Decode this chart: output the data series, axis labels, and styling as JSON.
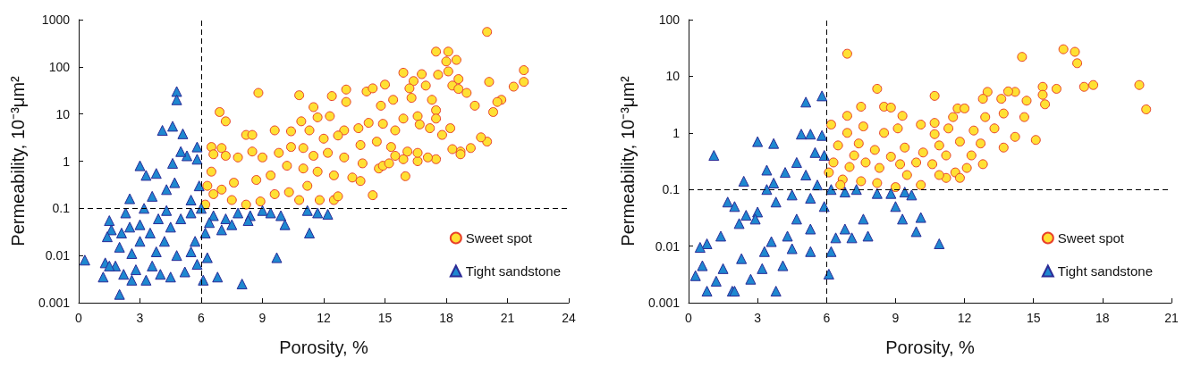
{
  "chart_data": [
    {
      "type": "scatter",
      "xlabel": "Porosity, %",
      "ylabel": "Permeability, 10⁻³μm²",
      "log": "y",
      "legend": "bottom right",
      "xlim": [
        0,
        24
      ],
      "xticks": [
        0,
        3,
        6,
        9,
        12,
        15,
        18,
        21,
        24
      ],
      "ylim": [
        0.001,
        1000
      ],
      "yticks": [
        0.001,
        0.01,
        0.1,
        1,
        10,
        100,
        1000
      ],
      "ref_lines": [
        {
          "axis": "x",
          "value": 6,
          "color": "#000000",
          "line_style": "dashed"
        },
        {
          "axis": "y",
          "value": 0.1,
          "color": "#000000",
          "line_style": "dashed"
        }
      ],
      "series": [
        {
          "name": "Sweet spot",
          "color": "#ffe033",
          "marker": "circle",
          "x": [
            20,
            17.5,
            18.1,
            18,
            18.5,
            18.1,
            21.8,
            21.8,
            20.1,
            21.3,
            20.7,
            20.5,
            20.3,
            20,
            19.7,
            19.2,
            18.7,
            18.7,
            18.3,
            18.2,
            17.5,
            17.1,
            16.6,
            16,
            15.9,
            14.4,
            14.7,
            11.8,
            12.5,
            12.7,
            8.8,
            10.8,
            6.9,
            7.2,
            12.4,
            13.1,
            13.1,
            14.1,
            14.4,
            15,
            15.9,
            16.8,
            17.6,
            16.4,
            16.2,
            17,
            18.3,
            18.6,
            18.6,
            19,
            19.4,
            11.5,
            11.7,
            12.3,
            10.9,
            14.8,
            15.4,
            16.3,
            17.3,
            17.5,
            17.5,
            17.8,
            17.2,
            15.9,
            16.6,
            16.7,
            15.5,
            14.9,
            14.2,
            13.7,
            13,
            12.7,
            12,
            11.3,
            10.4,
            9.6,
            8.2,
            8.5,
            6.5,
            7,
            7.2,
            7.8,
            8.5,
            9,
            9.8,
            10.4,
            11,
            11.5,
            12.2,
            13,
            13.8,
            14.6,
            15.3,
            16.1,
            10.2,
            11,
            11.7,
            12.5,
            13.4,
            13.8,
            9.4,
            8.7,
            7.6,
            6.3,
            6.6,
            7,
            7.5,
            8.2,
            8.9,
            9.6,
            10.3,
            11.2,
            6.2,
            6.5,
            6.6,
            10.8,
            13.9,
            14.9,
            15.5,
            16.6,
            15.2
          ],
          "values": [
            550,
            210,
            210,
            130,
            140,
            80,
            85,
            48,
            48,
            38,
            20,
            18,
            11,
            2.6,
            3.2,
            1.9,
            1.6,
            1.4,
            1.8,
            5,
            1.1,
            1.2,
            1,
            0.48,
            1.1,
            0.19,
            0.7,
            0.15,
            0.15,
            0.18,
            28,
            25,
            11,
            7,
            24,
            33,
            18,
            30,
            35,
            42,
            75,
            70,
            68,
            50,
            35,
            40,
            40,
            34,
            55,
            28,
            15,
            14,
            8.5,
            9,
            7,
            15,
            20,
            22,
            20,
            12,
            8,
            3.6,
            5,
            8,
            9,
            6,
            4.5,
            6.2,
            6.5,
            5,
            4.5,
            3.5,
            3,
            4.5,
            4.3,
            4.5,
            3.6,
            3.6,
            2,
            1.9,
            1.3,
            1.2,
            1.6,
            1.2,
            1.5,
            2,
            1.9,
            1.3,
            1.5,
            1.2,
            2.2,
            2.6,
            2,
            1.6,
            0.8,
            0.7,
            0.6,
            0.5,
            0.45,
            0.38,
            0.5,
            0.4,
            0.35,
            0.3,
            0.2,
            0.25,
            0.15,
            0.12,
            0.14,
            0.2,
            0.22,
            0.3,
            0.12,
            0.6,
            1.4,
            0.15,
            0.9,
            0.8,
            1.3,
            1.5,
            0.9
          ]
        },
        {
          "name": "Tight sandstone",
          "color": "#1e88d0",
          "marker": "triangle",
          "x": [
            0.3,
            1.2,
            1.3,
            1.5,
            1.6,
            1.4,
            2,
            2,
            1.8,
            2.5,
            2.3,
            2.5,
            2.8,
            3,
            3.3,
            3.8,
            3.6,
            3.2,
            3.5,
            3,
            3.3,
            4.1,
            4.6,
            4.8,
            4.8,
            5.1,
            5.3,
            5,
            5.8,
            5.8,
            4.6,
            4.7,
            4.3,
            5.9,
            5.5,
            4.3,
            3.9,
            4.5,
            5,
            5.5,
            6,
            6.6,
            7.2,
            7.8,
            8.4,
            9,
            9.4,
            9.9,
            10.1,
            11.2,
            11.7,
            12.2,
            11.3,
            9.7,
            8,
            6.8,
            6.1,
            6.3,
            5.8,
            5.2,
            4.5,
            4,
            3.6,
            2.6,
            2.2,
            1.5,
            2.6,
            3.8,
            4.8,
            5.5,
            6.2,
            7,
            5.7,
            4.2,
            3,
            2.1,
            6.4,
            7.5,
            8.3
          ],
          "values": [
            0.008,
            0.0035,
            0.007,
            0.055,
            0.035,
            0.025,
            0.0015,
            0.015,
            0.006,
            0.16,
            0.08,
            0.04,
            0.005,
            0.8,
            0.5,
            0.55,
            0.18,
            0.1,
            0.03,
            0.02,
            0.003,
            4.5,
            5.5,
            30,
            20,
            3.8,
            1.3,
            1.6,
            2,
            1.1,
            0.9,
            0.35,
            0.25,
            0.3,
            0.15,
            0.09,
            0.06,
            0.04,
            0.06,
            0.08,
            0.1,
            0.07,
            0.06,
            0.08,
            0.07,
            0.09,
            0.08,
            0.07,
            0.045,
            0.09,
            0.08,
            0.075,
            0.03,
            0.009,
            0.0025,
            0.0035,
            0.003,
            0.009,
            0.0065,
            0.0045,
            0.0035,
            0.004,
            0.006,
            0.003,
            0.004,
            0.006,
            0.011,
            0.012,
            0.01,
            0.012,
            0.03,
            0.035,
            0.02,
            0.02,
            0.045,
            0.03,
            0.05,
            0.045,
            0.055
          ]
        }
      ]
    },
    {
      "type": "scatter",
      "xlabel": "Porosity, %",
      "ylabel": "Permeability, 10⁻³μm²",
      "log": "y",
      "legend": "bottom right",
      "xlim": [
        0,
        21
      ],
      "xticks": [
        0,
        3,
        6,
        9,
        12,
        15,
        18,
        21
      ],
      "ylim": [
        0.001,
        100
      ],
      "yticks": [
        0.001,
        0.01,
        0.1,
        1,
        10,
        100
      ],
      "ref_lines": [
        {
          "axis": "x",
          "value": 6,
          "color": "#000000",
          "line_style": "dashed"
        },
        {
          "axis": "y",
          "value": 0.1,
          "color": "#000000",
          "line_style": "dashed"
        }
      ],
      "series": [
        {
          "name": "Sweet spot",
          "color": "#ffe033",
          "marker": "circle",
          "x": [
            6.9,
            14.5,
            16.3,
            16.8,
            16.9,
            19.6,
            19.9,
            17.6,
            17.2,
            16,
            15.4,
            15.4,
            15.5,
            15.1,
            14.7,
            14.6,
            14.2,
            13.9,
            13,
            13.6,
            13.7,
            12.8,
            12.9,
            11.7,
            12,
            10.7,
            8.2,
            7.5,
            8.5,
            8.8,
            6.9,
            9.3,
            10.7,
            11.5,
            10.1,
            6.2,
            6.9,
            7.6,
            8.5,
            9.1,
            10.7,
            11.3,
            12.4,
            13.3,
            14.2,
            10.9,
            11.8,
            12.7,
            13.7,
            6.5,
            7.4,
            8.1,
            9.4,
            10.2,
            11.2,
            12.3,
            12.8,
            12.1,
            11.6,
            11.8,
            11.2,
            10.9,
            10.1,
            9,
            8.2,
            7.5,
            6.7,
            6.1,
            6.3,
            7,
            7.7,
            8.3,
            9.2,
            9.9,
            10.6,
            7.2,
            8.8,
            6.6,
            9.5
          ],
          "values": [
            25,
            22,
            30,
            27,
            17,
            7,
            2.6,
            7,
            6.5,
            6,
            6.5,
            4.7,
            3.2,
            0.75,
            3.7,
            1.9,
            5.3,
            5.4,
            5.3,
            4,
            2.2,
            4,
            1.9,
            2.7,
            2.7,
            4.5,
            6,
            2.9,
            2.9,
            2.8,
            2,
            2,
            1.5,
            1.9,
            1.4,
            1.4,
            1,
            1.3,
            1,
            1.2,
            0.95,
            1.2,
            1.1,
            1.2,
            0.85,
            0.6,
            0.7,
            0.65,
            0.55,
            0.6,
            0.65,
            0.5,
            0.55,
            0.45,
            0.4,
            0.4,
            0.28,
            0.24,
            0.2,
            0.16,
            0.16,
            0.18,
            0.12,
            0.11,
            0.13,
            0.14,
            0.15,
            0.2,
            0.3,
            0.25,
            0.3,
            0.24,
            0.28,
            0.3,
            0.28,
            0.4,
            0.38,
            0.12,
            0.18
          ]
        },
        {
          "name": "Tight sandstone",
          "color": "#1e88d0",
          "marker": "triangle",
          "x": [
            1.1,
            3,
            3.7,
            4.9,
            5.3,
            5.8,
            5.1,
            5.8,
            5.5,
            5.9,
            4.7,
            3.4,
            2.4,
            3.7,
            4.2,
            5.1,
            5.6,
            6.2,
            6.8,
            7.3,
            8.2,
            8.8,
            9.4,
            9.7,
            9,
            9.3,
            9.9,
            10.1,
            10.9,
            7.8,
            7.1,
            6.4,
            6.8,
            7.6,
            6.2,
            6.1,
            5.9,
            5.3,
            4.7,
            4.3,
            3.6,
            2.5,
            1.7,
            2,
            0.8,
            0.5,
            0.3,
            0.6,
            0.8,
            1.2,
            1.9,
            2,
            2.7,
            3.8,
            3.2,
            4.1,
            1.5,
            2.3,
            3.3,
            4.5,
            5.3,
            1.4,
            2.2,
            3,
            3.8,
            4.5,
            5.3,
            3.4,
            2.9
          ],
          "values": [
            0.4,
            0.7,
            0.65,
            0.95,
            0.95,
            0.9,
            3.5,
            4.5,
            0.45,
            0.4,
            0.3,
            0.22,
            0.14,
            0.13,
            0.2,
            0.18,
            0.12,
            0.1,
            0.09,
            0.1,
            0.085,
            0.085,
            0.09,
            0.08,
            0.05,
            0.03,
            0.018,
            0.032,
            0.011,
            0.015,
            0.014,
            0.014,
            0.02,
            0.03,
            0.008,
            0.0032,
            0.05,
            0.02,
            0.03,
            0.015,
            0.012,
            0.035,
            0.06,
            0.05,
            0.011,
            0.0095,
            0.003,
            0.0045,
            0.0016,
            0.0024,
            0.0016,
            0.0016,
            0.0026,
            0.0016,
            0.004,
            0.0045,
            0.004,
            0.006,
            0.008,
            0.009,
            0.008,
            0.015,
            0.025,
            0.04,
            0.06,
            0.08,
            0.07,
            0.1,
            0.03
          ]
        }
      ]
    }
  ]
}
